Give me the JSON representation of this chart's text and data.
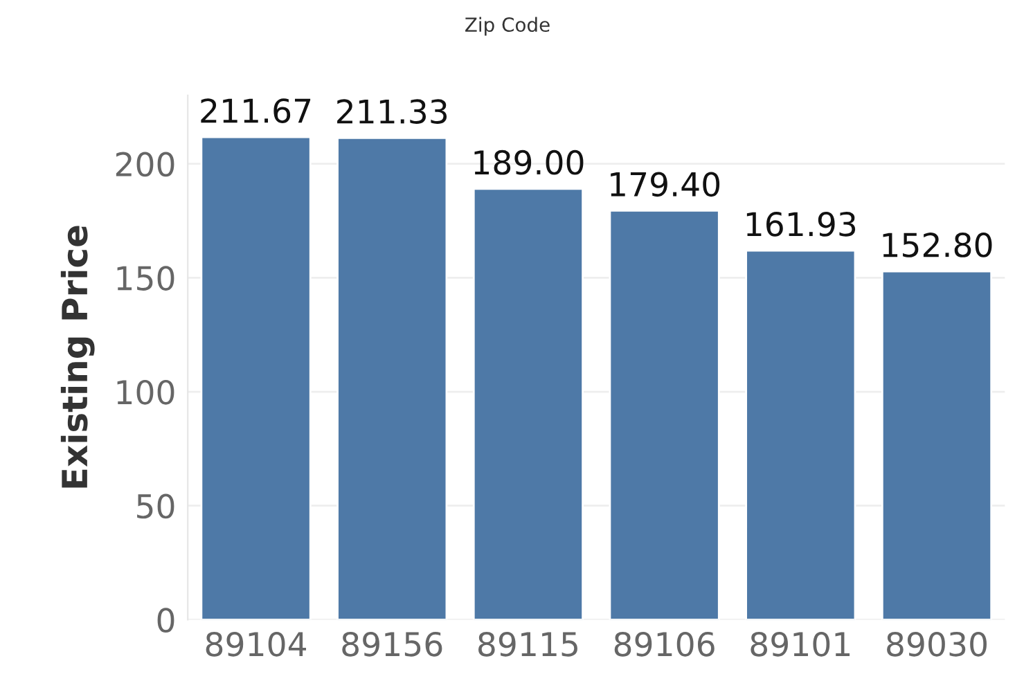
{
  "chart_data": {
    "type": "bar",
    "title": "Zip Code",
    "ylabel": "Existing Price",
    "categories": [
      "89104",
      "89156",
      "89115",
      "89106",
      "89101",
      "89030"
    ],
    "values": [
      211.67,
      211.33,
      189.0,
      179.4,
      161.93,
      152.8
    ],
    "value_labels": [
      "211.67",
      "211.33",
      "189.00",
      "179.40",
      "161.93",
      "152.80"
    ],
    "color": "#4e79a7",
    "ylim": [
      0,
      230
    ],
    "yticks": [
      0,
      50,
      100,
      150,
      200
    ],
    "grid": "y",
    "legend": false
  }
}
